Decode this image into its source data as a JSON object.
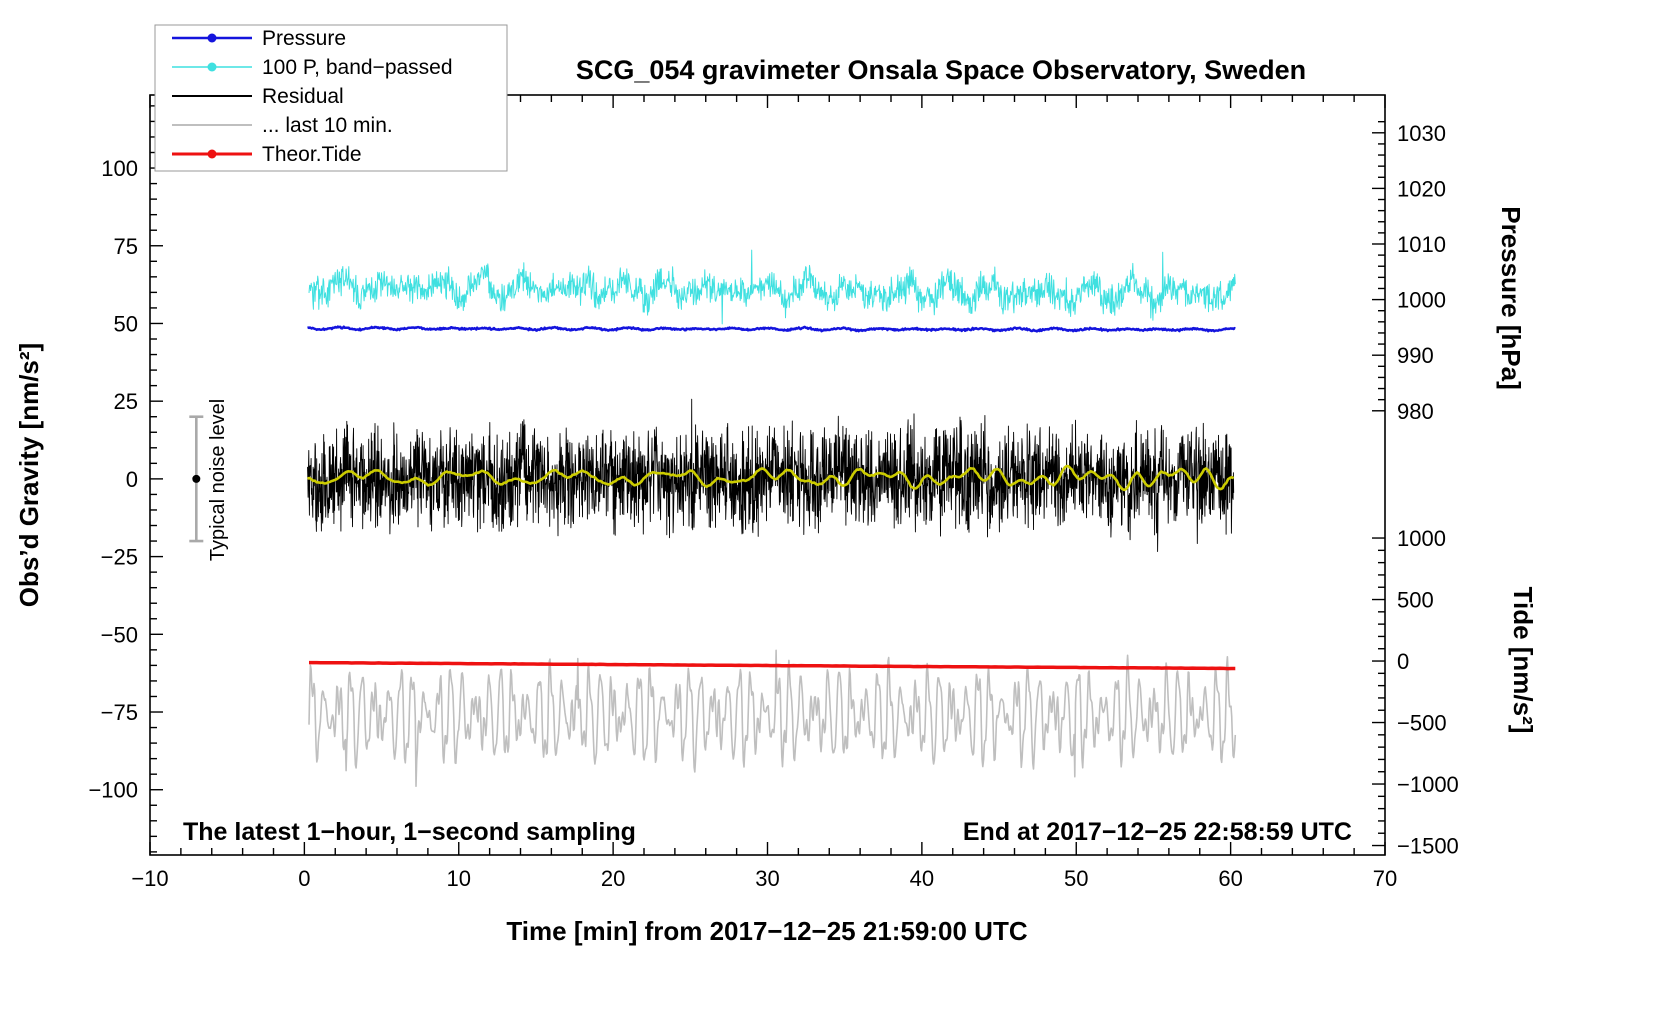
{
  "title": "SCG_054 gravimeter Onsala Space Observatory, Sweden",
  "annotations": {
    "sampling_note": "The latest 1−hour, 1−second sampling",
    "end_time_note": "End at 2017−12−25 22:58:59 UTC",
    "noise_label": "Typical noise level"
  },
  "chart_data": {
    "type": "line",
    "title": "SCG_054 gravimeter Onsala Space Observatory, Sweden",
    "xlabel": "Time [min] from 2017−12−25 21:59:00 UTC",
    "x_range": [
      -10,
      70
    ],
    "x_major_step": 10,
    "x_minor_step": 2,
    "x_tick_labels": [
      "−10",
      "0",
      "10",
      "20",
      "30",
      "40",
      "50",
      "60",
      "70"
    ],
    "grid": false,
    "legend_position": "top-left",
    "layout": {
      "box": {
        "l": 150,
        "r": 1385,
        "t": 95,
        "b": 855
      }
    },
    "axes": {
      "gravity": {
        "label": "Obs’d Gravity [nm/s²]",
        "side": "left",
        "range": [
          -121,
          123.5
        ],
        "majors": [
          -100,
          -75,
          -50,
          -25,
          0,
          25,
          50,
          75,
          100
        ],
        "minor_step": 5,
        "minor_span": [
          -120,
          120
        ]
      },
      "pressure": {
        "label": "Pressure [hPa]",
        "side": "right",
        "range": [
          900.1,
          1036.8
        ],
        "majors": [
          980,
          990,
          1000,
          1010,
          1020,
          1030
        ],
        "minor_step": 2,
        "minor_span": [
          980,
          1032
        ]
      },
      "tide": {
        "label": "Tide [nm/s²]",
        "side": "right",
        "range": [
          -1577,
          4602
        ],
        "majors": [
          -1500,
          -1000,
          -500,
          0,
          500,
          1000
        ],
        "minor_step": 100,
        "minor_span": [
          -1500,
          1000
        ]
      }
    },
    "noise_bar": {
      "x": -7,
      "center": 0,
      "half_range": 20
    },
    "legend": [
      {
        "label": "Pressure",
        "color": "#1414dd",
        "marker": true
      },
      {
        "label": "100 P, band−passed",
        "color": "#3fe0e0",
        "marker": true
      },
      {
        "label": "Residual",
        "color": "#000000",
        "marker": false
      },
      {
        "label": "... last 10 min.",
        "color": "#bfbfbf",
        "marker": false
      },
      {
        "label": "Theor.Tide",
        "color": "#ee1111",
        "marker": true
      }
    ],
    "series": [
      {
        "id": "last10",
        "axis": "gravity",
        "color": "#bfbfbf",
        "width": 1.6,
        "seed": 11,
        "points": 1300,
        "x_start": 0.3,
        "x_end": 60.3,
        "base": -76,
        "trend_end": -76,
        "hf": 0.8,
        "lf": [
          {
            "amp": 5.2,
            "fmin": 0.7,
            "fmax": 1.7,
            "n": 3
          },
          {
            "amp": 2.8,
            "fmin": 2.4,
            "fmax": 4.8,
            "n": 3
          }
        ],
        "spike_prob": 0.006,
        "spike_amp": 13,
        "spike_bias": 0.25
      },
      {
        "id": "tide",
        "axis": "gravity",
        "color": "#ee1111",
        "width": 3.5,
        "seed": 2,
        "points": 240,
        "x_start": 0.3,
        "x_end": 60.3,
        "base": -59.1,
        "trend_end": -61.0,
        "hf": 0.05,
        "lf": []
      },
      {
        "id": "band_passed",
        "axis": "gravity",
        "color": "#3fe0e0",
        "width": 1,
        "seed": 3,
        "points": 1700,
        "x_start": 0.3,
        "x_end": 60.3,
        "base": 62.0,
        "trend_end": 59.3,
        "hf": 6,
        "lf": [
          {
            "amp": 1.5,
            "fmin": 0.3,
            "fmax": 1.1,
            "n": 3
          }
        ],
        "spike_prob": 0.005,
        "spike_amp": 9,
        "spike_bias": 0.7
      },
      {
        "id": "pressure",
        "axis": "gravity",
        "color": "#1414dd",
        "width": 2.5,
        "seed": 4,
        "points": 1100,
        "x_start": 0.2,
        "x_end": 60.3,
        "base": 48.4,
        "trend_end": 48.0,
        "hf": 0.35,
        "lf": [
          {
            "amp": 0.2,
            "fmin": 0.2,
            "fmax": 0.9,
            "n": 2
          }
        ]
      },
      {
        "id": "residual",
        "axis": "gravity",
        "color": "#000000",
        "width": 0.9,
        "seed": 5,
        "points": 2800,
        "x_start": 0.2,
        "x_end": 60.2,
        "base": 0.4,
        "trend_end": 0.4,
        "hf": 19,
        "lf": [
          {
            "amp": 1.1,
            "fmin": 0.2,
            "fmax": 0.8,
            "n": 2
          }
        ],
        "spike_prob": 0.012,
        "spike_amp": 10,
        "spike_bias": 0.5
      },
      {
        "id": "residual_smooth",
        "axis": "gravity",
        "color": "#cccc00",
        "width": 2.6,
        "seed": 6,
        "points": 500,
        "x_start": 0.2,
        "x_end": 60.2,
        "base": 0.4,
        "trend_end": 0.4,
        "hf": 0.3,
        "lf": [
          {
            "amp": 1.5,
            "fmin": 0.15,
            "fmax": 0.7,
            "n": 4
          }
        ]
      }
    ]
  }
}
